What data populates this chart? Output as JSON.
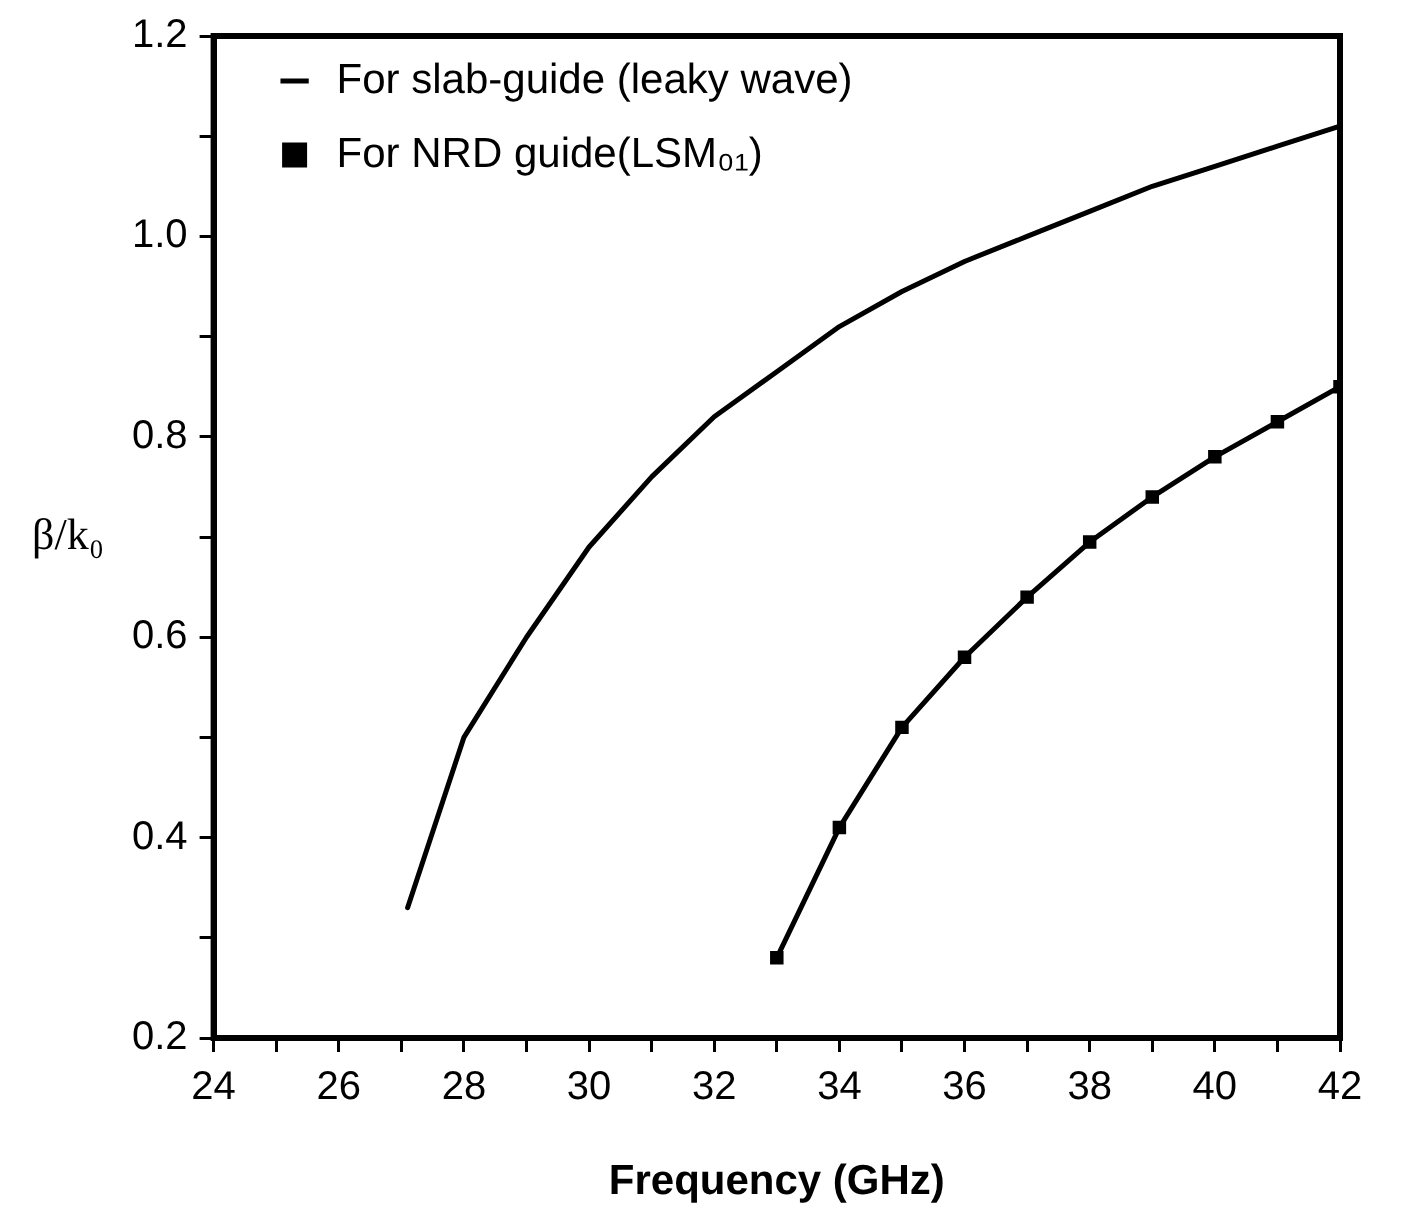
{
  "chart_data": {
    "type": "line",
    "xlabel": "Frequency (GHz)",
    "ylabel": "β/k₀",
    "xlim": [
      24,
      42
    ],
    "ylim": [
      0.2,
      1.2
    ],
    "xticks": [
      24,
      {
        "value": 25,
        "label": null
      },
      26,
      {
        "value": 27,
        "label": null
      },
      28,
      {
        "value": 29,
        "label": null
      },
      30,
      {
        "value": 31,
        "label": null
      },
      32,
      {
        "value": 33,
        "label": null
      },
      34,
      {
        "value": 35,
        "label": null
      },
      36,
      {
        "value": 37,
        "label": null
      },
      38,
      {
        "value": 39,
        "label": null
      },
      40,
      {
        "value": 41,
        "label": null
      },
      42
    ],
    "yticks": [
      {
        "value": 0.2,
        "label": "0.2"
      },
      {
        "value": 0.3,
        "label": null
      },
      {
        "value": 0.4,
        "label": "0.4"
      },
      {
        "value": 0.5,
        "label": null
      },
      {
        "value": 0.6,
        "label": "0.6"
      },
      {
        "value": 0.7,
        "label": null
      },
      {
        "value": 0.8,
        "label": "0.8"
      },
      {
        "value": 0.9,
        "label": null
      },
      {
        "value": 1.0,
        "label": "1.0"
      },
      {
        "value": 1.1,
        "label": null
      },
      {
        "value": 1.2,
        "label": "1.2"
      }
    ],
    "grid": false,
    "legend": "top left",
    "line_style": "solid",
    "series": [
      {
        "name": "For slab-guide (leaky wave)",
        "color": "#000000",
        "marker": "none",
        "x": [
          27.1,
          28,
          29,
          30,
          31,
          32,
          33,
          34,
          35,
          36,
          37,
          38,
          39,
          40,
          41,
          42
        ],
        "values": [
          0.33,
          0.5,
          0.6,
          0.69,
          0.76,
          0.82,
          0.865,
          0.91,
          0.945,
          0.975,
          1.0,
          1.025,
          1.05,
          1.07,
          1.09,
          1.11
        ]
      },
      {
        "name": "For NRD guide(LSM₀₁)",
        "color": "#000000",
        "marker": "square",
        "x": [
          33,
          34,
          35,
          36,
          37,
          38,
          39,
          40,
          41,
          42
        ],
        "values": [
          0.28,
          0.41,
          0.51,
          0.58,
          0.64,
          0.695,
          0.74,
          0.78,
          0.815,
          0.85
        ]
      }
    ]
  }
}
